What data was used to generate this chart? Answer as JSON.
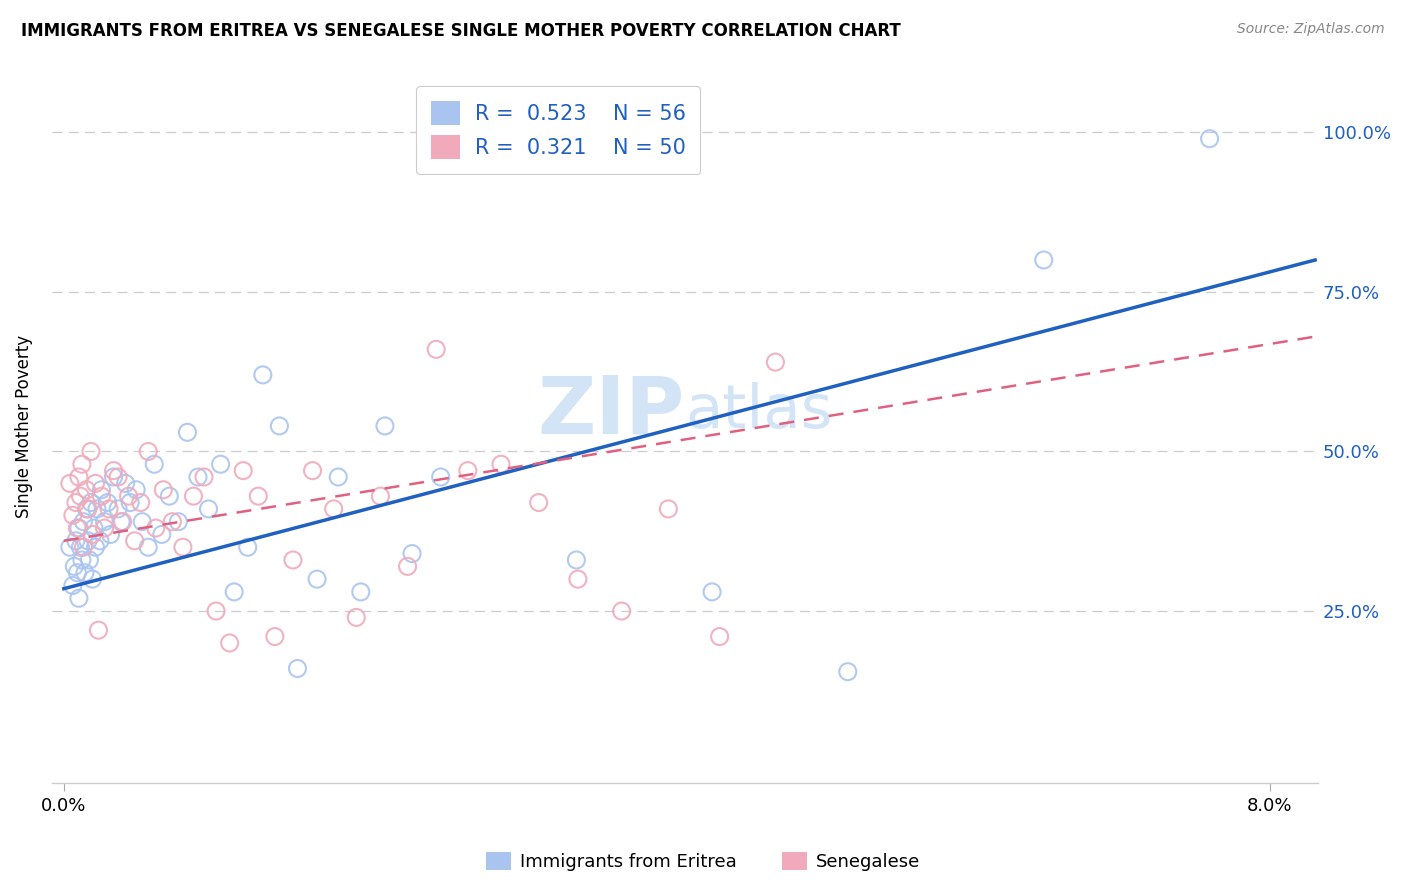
{
  "title": "IMMIGRANTS FROM ERITREA VS SENEGALESE SINGLE MOTHER POVERTY CORRELATION CHART",
  "source": "Source: ZipAtlas.com",
  "ylabel": "Single Mother Poverty",
  "legend_eritrea_r": "0.523",
  "legend_eritrea_n": "56",
  "legend_senegal_r": "0.321",
  "legend_senegal_n": "50",
  "eritrea_color": "#aac4f0",
  "senegal_color": "#f0aabb",
  "line_eritrea_color": "#2060c0",
  "line_senegal_color": "#e06080",
  "watermark_color": "#cce0f5",
  "eritrea_x": [
    0.0004,
    0.0006,
    0.0007,
    0.0008,
    0.0009,
    0.001,
    0.001,
    0.0011,
    0.0012,
    0.0013,
    0.0014,
    0.0015,
    0.0016,
    0.0017,
    0.0018,
    0.0019,
    0.002,
    0.0021,
    0.0022,
    0.0024,
    0.0025,
    0.0027,
    0.0029,
    0.0031,
    0.0033,
    0.0036,
    0.0038,
    0.0041,
    0.0044,
    0.0048,
    0.0052,
    0.0056,
    0.006,
    0.0065,
    0.007,
    0.0076,
    0.0082,
    0.0089,
    0.0096,
    0.0104,
    0.0113,
    0.0122,
    0.0132,
    0.0143,
    0.0155,
    0.0168,
    0.0182,
    0.0197,
    0.0213,
    0.0231,
    0.025,
    0.034,
    0.043,
    0.052,
    0.065,
    0.076
  ],
  "eritrea_y": [
    0.35,
    0.29,
    0.32,
    0.36,
    0.31,
    0.38,
    0.27,
    0.35,
    0.33,
    0.39,
    0.31,
    0.41,
    0.36,
    0.33,
    0.42,
    0.3,
    0.38,
    0.35,
    0.41,
    0.36,
    0.44,
    0.39,
    0.42,
    0.37,
    0.46,
    0.41,
    0.39,
    0.45,
    0.42,
    0.44,
    0.39,
    0.35,
    0.48,
    0.37,
    0.43,
    0.39,
    0.53,
    0.46,
    0.41,
    0.48,
    0.28,
    0.35,
    0.62,
    0.54,
    0.16,
    0.3,
    0.46,
    0.28,
    0.54,
    0.34,
    0.46,
    0.33,
    0.28,
    0.155,
    0.8,
    0.99
  ],
  "senegal_x": [
    0.0004,
    0.0006,
    0.0008,
    0.0009,
    0.001,
    0.0011,
    0.0012,
    0.0013,
    0.0015,
    0.0016,
    0.0018,
    0.0019,
    0.0021,
    0.0023,
    0.0025,
    0.0027,
    0.003,
    0.0033,
    0.0036,
    0.0039,
    0.0043,
    0.0047,
    0.0051,
    0.0056,
    0.0061,
    0.0066,
    0.0072,
    0.0079,
    0.0086,
    0.0093,
    0.0101,
    0.011,
    0.0119,
    0.0129,
    0.014,
    0.0152,
    0.0165,
    0.0179,
    0.0194,
    0.021,
    0.0228,
    0.0247,
    0.0268,
    0.029,
    0.0315,
    0.0341,
    0.037,
    0.0401,
    0.0435,
    0.0472
  ],
  "senegal_y": [
    0.45,
    0.4,
    0.42,
    0.38,
    0.46,
    0.43,
    0.48,
    0.35,
    0.44,
    0.41,
    0.5,
    0.37,
    0.45,
    0.22,
    0.43,
    0.38,
    0.41,
    0.47,
    0.46,
    0.39,
    0.43,
    0.36,
    0.42,
    0.5,
    0.38,
    0.44,
    0.39,
    0.35,
    0.43,
    0.46,
    0.25,
    0.2,
    0.47,
    0.43,
    0.21,
    0.33,
    0.47,
    0.41,
    0.24,
    0.43,
    0.32,
    0.66,
    0.47,
    0.48,
    0.42,
    0.3,
    0.25,
    0.41,
    0.21,
    0.64
  ],
  "xlim": [
    -0.0008,
    0.0832
  ],
  "ylim": [
    -0.02,
    1.1
  ],
  "ytick_positions": [
    0.0,
    0.25,
    0.5,
    0.75,
    1.0
  ],
  "ytick_labels_right": [
    "",
    "25.0%",
    "50.0%",
    "75.0%",
    "100.0%"
  ],
  "xtick_positions": [
    0.0,
    0.08
  ],
  "xtick_labels": [
    "0.0%",
    "8.0%"
  ],
  "line_e_x0": 0.0,
  "line_e_x1": 0.083,
  "line_e_y0": 0.285,
  "line_e_y1": 0.8,
  "line_s_x0": 0.0,
  "line_s_x1": 0.083,
  "line_s_y0": 0.36,
  "line_s_y1": 0.68
}
